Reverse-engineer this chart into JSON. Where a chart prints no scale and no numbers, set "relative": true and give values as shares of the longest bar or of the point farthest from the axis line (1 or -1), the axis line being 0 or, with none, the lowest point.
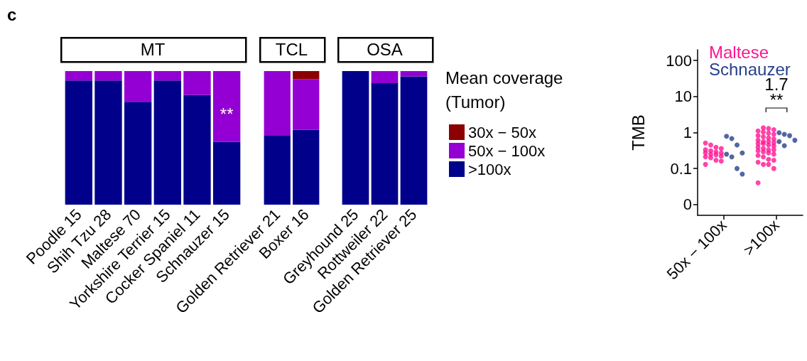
{
  "chart_data": [
    {
      "type": "bar",
      "title": "MT",
      "categories": [
        "Poodle 15",
        "Shih Tzu 28",
        "Maltese 70",
        "Yorkshire Terrier 15",
        "Cocker Spaniel 11",
        "Schnauzer 15"
      ],
      "stacked": true,
      "relative": true,
      "legend": false,
      "annotations": [
        "c",
        "**"
      ],
      "series": [
        {
          "color": "#00008b",
          "values": [
            0.93,
            0.93,
            0.77,
            0.93,
            0.82,
            0.47
          ]
        },
        {
          "color": "#9400d3",
          "values": [
            0.07,
            0.07,
            0.23,
            0.07,
            0.18,
            0.53
          ]
        }
      ]
    },
    {
      "type": "bar",
      "title": "TCL",
      "categories": [
        "Golden Retriever 21",
        "Boxer 16"
      ],
      "stacked": true,
      "relative": true,
      "legend": false,
      "series": [
        {
          "color": "#00008b",
          "values": [
            0.52,
            0.56
          ]
        },
        {
          "color": "#9400d3",
          "values": [
            0.48,
            0.38
          ]
        },
        {
          "color": "#8b0000",
          "values": [
            0,
            0.06
          ]
        }
      ]
    },
    {
      "type": "bar",
      "title": "OSA",
      "categories": [
        "Greyhound 25",
        "Rottweiler 22",
        "Golden Retriever 25"
      ],
      "stacked": true,
      "relative": true,
      "legend": "right",
      "legend_title": "Mean coverage (Tumor)",
      "series": [
        {
          "name": ">100x",
          "color": "#00008b",
          "values": [
            1,
            0.91,
            0.96
          ]
        },
        {
          "name": "50x − 100x",
          "color": "#9400d3",
          "values": [
            0,
            0.09,
            0.04
          ]
        },
        {
          "name": "30x − 50x",
          "color": "#8b0000",
          "values": [
            0,
            0,
            0
          ]
        }
      ]
    },
    {
      "type": "scatter",
      "categories": [
        "50x − 100x",
        ">100x"
      ],
      "ylabel": "TMB",
      "log": "y",
      "ylim": [
        0.005,
        200
      ],
      "yticks": [
        {
          "value": 0.01,
          "label": "0"
        },
        0.1,
        1,
        10,
        100
      ],
      "marker": "circle",
      "legend": "top left",
      "annotations": [
        "1.7",
        "**"
      ],
      "series": [
        {
          "name": "Maltese",
          "color": "#ff1493",
          "x": [
            "50x − 100x",
            "50x − 100x",
            "50x − 100x",
            "50x − 100x",
            "50x − 100x",
            "50x − 100x",
            "50x − 100x",
            "50x − 100x",
            "50x − 100x",
            "50x − 100x",
            "50x − 100x",
            "50x − 100x",
            "50x − 100x",
            "50x − 100x",
            "50x − 100x",
            "50x − 100x",
            "50x − 100x",
            ">100x",
            ">100x",
            ">100x",
            ">100x",
            ">100x",
            ">100x",
            ">100x",
            ">100x",
            ">100x",
            ">100x",
            ">100x",
            ">100x",
            ">100x",
            ">100x",
            ">100x",
            ">100x",
            ">100x",
            ">100x",
            ">100x",
            ">100x",
            ">100x",
            ">100x",
            ">100x",
            ">100x",
            ">100x",
            ">100x",
            ">100x",
            ">100x",
            ">100x",
            ">100x",
            ">100x",
            ">100x",
            ">100x",
            ">100x",
            ">100x",
            ">100x"
          ],
          "values": [
            0.51,
            0.45,
            0.39,
            0.36,
            0.33,
            0.31,
            0.29,
            0.27,
            0.27,
            0.25,
            0.24,
            0.22,
            0.21,
            0.2,
            0.17,
            0.16,
            0.13,
            1.35,
            1.29,
            1.2,
            1.11,
            1.03,
            0.96,
            0.89,
            0.82,
            0.76,
            0.71,
            0.66,
            0.61,
            0.56,
            0.56,
            0.52,
            0.49,
            0.49,
            0.45,
            0.42,
            0.39,
            0.36,
            0.33,
            0.33,
            0.31,
            0.29,
            0.27,
            0.25,
            0.23,
            0.21,
            0.18,
            0.17,
            0.15,
            0.13,
            0.13,
            0.1,
            0.04
          ]
        },
        {
          "name": "Schnauzer",
          "color": "#27408b",
          "x": [
            "50x − 100x",
            "50x − 100x",
            "50x − 100x",
            "50x − 100x",
            "50x − 100x",
            "50x − 100x",
            "50x − 100x",
            "50x − 100x",
            ">100x",
            ">100x",
            ">100x",
            ">100x",
            ">100x",
            ">100x"
          ],
          "values": [
            0.79,
            0.68,
            0.45,
            0.27,
            0.25,
            0.21,
            0.1,
            0.07,
            0.99,
            0.89,
            0.82,
            0.61,
            0.56,
            0.43
          ]
        }
      ]
    }
  ]
}
